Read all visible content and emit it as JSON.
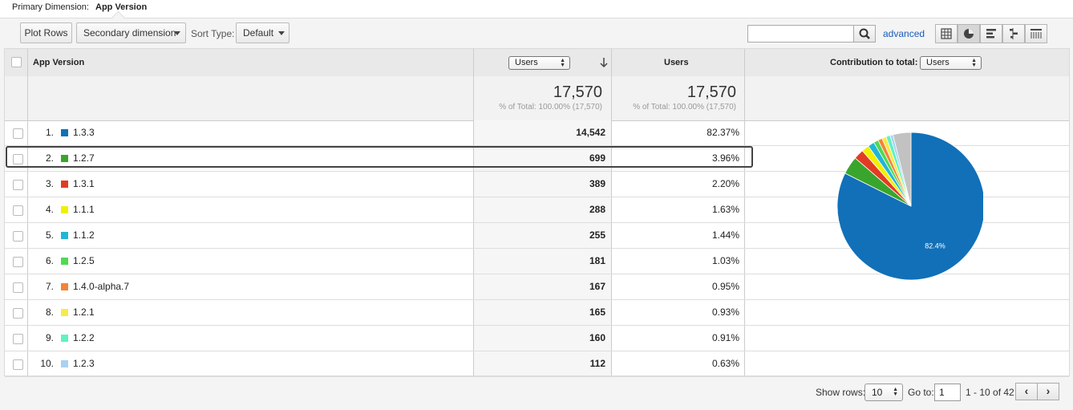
{
  "primary_dimension": {
    "label": "Primary Dimension:",
    "value": "App Version"
  },
  "toolbar": {
    "plot_rows": "Plot Rows",
    "secondary_dimension": "Secondary dimension",
    "sort_type_label": "Sort Type:",
    "sort_type_value": "Default",
    "advanced": "advanced"
  },
  "table": {
    "dimension_header": "App Version",
    "metric_select": "Users",
    "metric_header": "Users",
    "contribution_label": "Contribution to total:",
    "contribution_select": "Users",
    "total_1": "17,570",
    "total_1_pct": "% of Total: 100.00% (17,570)",
    "total_2": "17,570",
    "total_2_pct": "% of Total: 100.00% (17,570)",
    "rows": [
      {
        "index": "1.",
        "version": "1.3.3",
        "users": "14,542",
        "percent": "82.37%",
        "color": "#1170b8"
      },
      {
        "index": "2.",
        "version": "1.2.7",
        "users": "699",
        "percent": "3.96%",
        "color": "#3aa52c"
      },
      {
        "index": "3.",
        "version": "1.3.1",
        "users": "389",
        "percent": "2.20%",
        "color": "#e23b23"
      },
      {
        "index": "4.",
        "version": "1.1.1",
        "users": "288",
        "percent": "1.63%",
        "color": "#f0f000"
      },
      {
        "index": "5.",
        "version": "1.1.2",
        "users": "255",
        "percent": "1.44%",
        "color": "#21b6d6"
      },
      {
        "index": "6.",
        "version": "1.2.5",
        "users": "181",
        "percent": "1.03%",
        "color": "#4fda52"
      },
      {
        "index": "7.",
        "version": "1.4.0-alpha.7",
        "users": "167",
        "percent": "0.95%",
        "color": "#f48436"
      },
      {
        "index": "8.",
        "version": "1.2.1",
        "users": "165",
        "percent": "0.93%",
        "color": "#f7ea4a"
      },
      {
        "index": "9.",
        "version": "1.2.2",
        "users": "160",
        "percent": "0.91%",
        "color": "#5ff2c2"
      },
      {
        "index": "10.",
        "version": "1.2.3",
        "users": "112",
        "percent": "0.63%",
        "color": "#a8d2f2"
      }
    ]
  },
  "chart_data": {
    "type": "pie",
    "slices": [
      {
        "label": "1.3.3",
        "value": 82.37,
        "color": "#1170b8"
      },
      {
        "label": "1.2.7",
        "value": 3.96,
        "color": "#3aa52c"
      },
      {
        "label": "1.3.1",
        "value": 2.2,
        "color": "#e23b23"
      },
      {
        "label": "1.1.1",
        "value": 1.63,
        "color": "#f0f000"
      },
      {
        "label": "1.1.2",
        "value": 1.44,
        "color": "#21b6d6"
      },
      {
        "label": "1.2.5",
        "value": 1.03,
        "color": "#4fda52"
      },
      {
        "label": "1.4.0-alpha.7",
        "value": 0.95,
        "color": "#f48436"
      },
      {
        "label": "1.2.1",
        "value": 0.93,
        "color": "#f7ea4a"
      },
      {
        "label": "1.2.2",
        "value": 0.91,
        "color": "#5ff2c2"
      },
      {
        "label": "1.2.3",
        "value": 0.63,
        "color": "#a8d2f2"
      },
      {
        "label": "Other",
        "value": 3.95,
        "color": "#c2c2c2"
      }
    ],
    "data_label": "82.4%"
  },
  "footer": {
    "show_rows_label": "Show rows:",
    "show_rows_value": "10",
    "goto_label": "Go to:",
    "goto_value": "1",
    "range": "1 - 10 of 42"
  }
}
